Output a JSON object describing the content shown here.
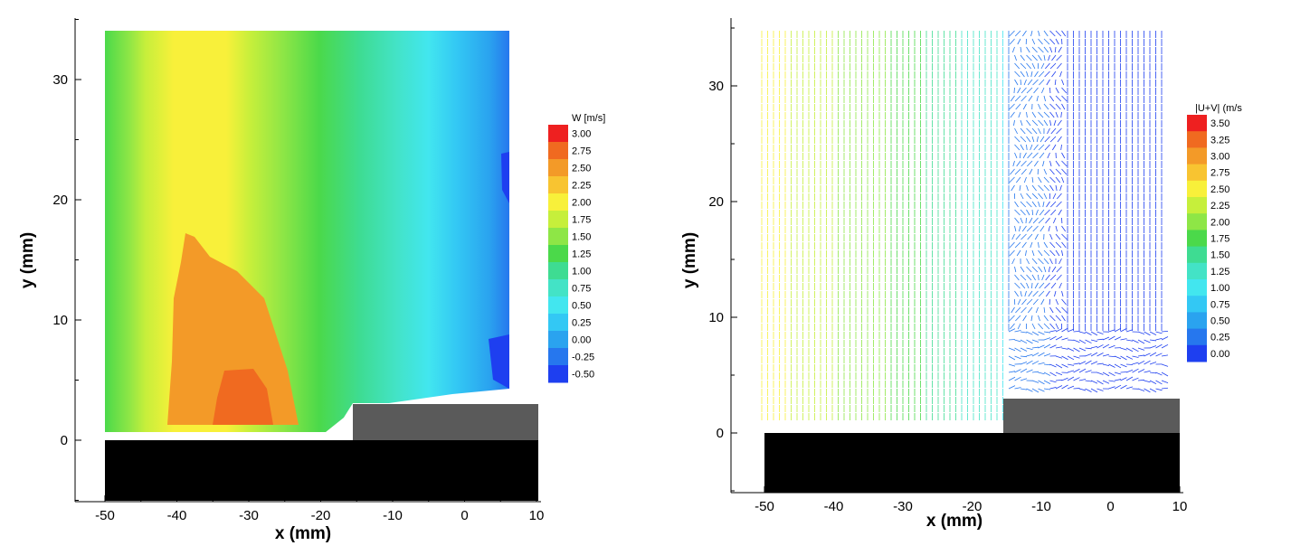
{
  "chart_data": [
    {
      "type": "heatmap",
      "title": "",
      "xlabel": "x (mm)",
      "ylabel": "y (mm)",
      "xlim": [
        -55,
        10
      ],
      "ylim": [
        -5,
        35
      ],
      "xticks": [
        -50,
        -40,
        -30,
        -20,
        -10,
        0,
        10
      ],
      "yticks": [
        0,
        10,
        20,
        30
      ],
      "colorbar": {
        "title": "W  [m/s]",
        "levels": [
          "3.00",
          "2.75",
          "2.50",
          "2.25",
          "2.00",
          "1.75",
          "1.50",
          "1.25",
          "1.00",
          "0.75",
          "0.50",
          "0.25",
          "0.00",
          "-0.25",
          "-0.50"
        ],
        "colors": [
          "#ee2020",
          "#f06a20",
          "#f39a28",
          "#f8c431",
          "#f8f03a",
          "#c6ef3b",
          "#8ee646",
          "#4bd94a",
          "#3edc92",
          "#43e3c6",
          "#42e6ef",
          "#33c8f4",
          "#2aa3ef",
          "#2677ee",
          "#1e3ff0"
        ]
      },
      "geometry": {
        "step_x_range": [
          -15,
          10
        ],
        "step_top_y": 3,
        "floor_x_range": [
          -50,
          10
        ],
        "floor_y_range": [
          -5,
          0
        ]
      }
    },
    {
      "type": "quiver",
      "title": "",
      "xlabel": "x (mm)",
      "ylabel": "y (mm)",
      "xlim": [
        -55,
        10
      ],
      "ylim": [
        -5,
        35
      ],
      "xticks": [
        -50,
        -40,
        -30,
        -20,
        -10,
        0,
        10
      ],
      "yticks": [
        0,
        10,
        20,
        30
      ],
      "colorbar": {
        "title": "|U+V| (m/s",
        "levels": [
          "3.50",
          "3.25",
          "3.00",
          "2.75",
          "2.50",
          "2.25",
          "2.00",
          "1.75",
          "1.50",
          "1.25",
          "1.00",
          "0.75",
          "0.50",
          "0.25",
          "0.00"
        ],
        "colors": [
          "#ee2020",
          "#f06a20",
          "#f39a28",
          "#f8c431",
          "#f8f03a",
          "#c6ef3b",
          "#8ee646",
          "#4bd94a",
          "#3edc92",
          "#43e3c6",
          "#42e6ef",
          "#33c8f4",
          "#2aa3ef",
          "#2677ee",
          "#1e3ff0"
        ]
      },
      "geometry": {
        "step_x_range": [
          -15,
          10
        ],
        "step_top_y": 3,
        "floor_x_range": [
          -50,
          10
        ],
        "floor_y_range": [
          -5,
          0
        ]
      }
    }
  ]
}
